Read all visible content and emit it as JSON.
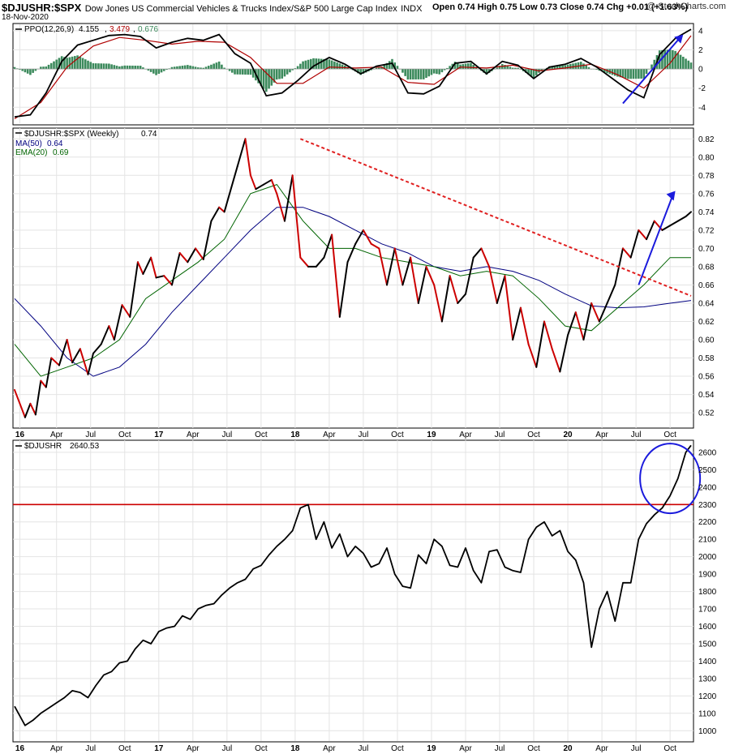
{
  "header": {
    "symbol": "$DJUSHR:$SPX",
    "description": "Dow Jones US Commercial Vehicles & Trucks Index/S&P 500 Large Cap Index",
    "exchange": "INDX",
    "date": "18-Nov-2020",
    "credit": "@ StockCharts.com",
    "open_label": "Open",
    "open": "0.74",
    "high_label": "High",
    "high": "0.75",
    "low_label": "Low",
    "low": "0.73",
    "close_label": "Close",
    "close": "0.74",
    "chg_label": "Chg",
    "chg": "+0.01 (+1.63%)"
  },
  "colors": {
    "price": "#000000",
    "price_down": "#cc0000",
    "ma50": "#000080",
    "ema20": "#006400",
    "ppo_line": "#000000",
    "ppo_signal": "#b00000",
    "histogram": "#3c8a5c",
    "trendline": "#e02020",
    "arrow": "#1a1adc",
    "resistance": "#cc0000",
    "circle": "#1a1adc"
  },
  "chart_data": [
    {
      "type": "line",
      "panel": "ppo",
      "legend": {
        "label": "PPO(12,26,9)",
        "ppo": "4.155",
        "signal": "3.479",
        "hist": "0.676"
      },
      "ylim": [
        -5.5,
        4.5
      ],
      "y_ticks": [
        "4",
        "2",
        "0",
        "-2",
        "-4"
      ],
      "series": [
        {
          "name": "PPO(12,26,9)",
          "t": [
            0,
            6,
            12,
            18,
            24,
            30,
            36,
            42,
            48,
            54,
            60,
            66,
            72,
            78,
            84,
            90,
            96,
            102,
            108,
            114,
            120,
            126,
            132,
            138,
            144,
            150,
            156,
            162,
            168,
            174,
            180,
            186,
            192,
            198,
            204,
            210,
            216,
            222,
            228,
            234,
            240,
            246,
            252,
            258
          ],
          "values": [
            -5,
            -4.8,
            -2.5,
            0.8,
            2.5,
            3,
            3.5,
            3.6,
            3.4,
            2.2,
            2.8,
            3.2,
            3.0,
            3.6,
            1.6,
            0.6,
            -2.8,
            -2.5,
            -1.2,
            0.3,
            1.2,
            0.5,
            -0.5,
            0.3,
            0.6,
            -2.5,
            -2.6,
            -1.8,
            0.6,
            0.8,
            -0.5,
            0.8,
            0.4,
            -1.0,
            0.2,
            0.5,
            1.1,
            0.2,
            -1.0,
            -2.2,
            -3.0,
            1.5,
            3.2,
            4.155
          ]
        },
        {
          "name": "Signal",
          "t": [
            0,
            10,
            20,
            30,
            40,
            50,
            60,
            70,
            80,
            90,
            100,
            110,
            120,
            130,
            140,
            150,
            160,
            170,
            180,
            190,
            200,
            210,
            220,
            230,
            240,
            250,
            258
          ],
          "values": [
            -5.2,
            -3.5,
            0.2,
            2.4,
            3.3,
            3.0,
            2.6,
            2.9,
            2.8,
            1.2,
            -1.5,
            -1.5,
            0.2,
            0.1,
            0.2,
            -1.4,
            -1.6,
            0.2,
            0.1,
            0.4,
            -0.2,
            0.1,
            0.5,
            -0.6,
            -2.0,
            0.6,
            3.479
          ]
        }
      ]
    },
    {
      "type": "line",
      "panel": "ratio",
      "legend": {
        "label": "$DJUSHR:$SPX (Weekly)",
        "value": "0.74",
        "ma_label": "MA(50)",
        "ma_value": "0.64",
        "ema_label": "EMA(20)",
        "ema_value": "0.69"
      },
      "ylim": [
        0.505,
        0.83
      ],
      "y_ticks": [
        "0.82",
        "0.80",
        "0.78",
        "0.76",
        "0.74",
        "0.72",
        "0.70",
        "0.68",
        "0.66",
        "0.64",
        "0.62",
        "0.60",
        "0.58",
        "0.56",
        "0.54",
        "0.52"
      ],
      "series": [
        {
          "name": "$DJUSHR:$SPX",
          "t": [
            0,
            4,
            6,
            8,
            10,
            12,
            14,
            17,
            20,
            22,
            25,
            28,
            30,
            33,
            36,
            38,
            41,
            44,
            47,
            49,
            52,
            54,
            57,
            60,
            63,
            66,
            69,
            72,
            75,
            78,
            80,
            82,
            85,
            88,
            90,
            92,
            95,
            98,
            100,
            103,
            106,
            109,
            112,
            115,
            118,
            121,
            124,
            127,
            130,
            133,
            136,
            139,
            142,
            145,
            148,
            151,
            154,
            157,
            160,
            163,
            166,
            169,
            172,
            175,
            178,
            181,
            184,
            187,
            190,
            193,
            196,
            199,
            202,
            205,
            208,
            211,
            214,
            217,
            220,
            223,
            226,
            229,
            232,
            235,
            238,
            241,
            244,
            247,
            250,
            253,
            256,
            258
          ],
          "values": [
            0.545,
            0.515,
            0.53,
            0.518,
            0.555,
            0.548,
            0.58,
            0.572,
            0.6,
            0.575,
            0.59,
            0.562,
            0.585,
            0.595,
            0.615,
            0.6,
            0.638,
            0.625,
            0.685,
            0.672,
            0.69,
            0.668,
            0.67,
            0.66,
            0.695,
            0.685,
            0.7,
            0.688,
            0.73,
            0.745,
            0.74,
            0.76,
            0.79,
            0.82,
            0.78,
            0.765,
            0.77,
            0.775,
            0.76,
            0.73,
            0.78,
            0.69,
            0.68,
            0.68,
            0.69,
            0.715,
            0.625,
            0.685,
            0.705,
            0.72,
            0.705,
            0.7,
            0.66,
            0.7,
            0.66,
            0.69,
            0.64,
            0.68,
            0.66,
            0.62,
            0.67,
            0.64,
            0.65,
            0.69,
            0.7,
            0.68,
            0.64,
            0.67,
            0.6,
            0.635,
            0.595,
            0.57,
            0.62,
            0.59,
            0.565,
            0.605,
            0.63,
            0.6,
            0.64,
            0.62,
            0.64,
            0.66,
            0.7,
            0.69,
            0.72,
            0.71,
            0.73,
            0.72,
            0.725,
            0.73,
            0.735,
            0.74
          ]
        },
        {
          "name": "MA(50)",
          "t": [
            0,
            10,
            20,
            30,
            40,
            50,
            60,
            70,
            80,
            90,
            100,
            110,
            120,
            130,
            140,
            150,
            160,
            170,
            180,
            190,
            200,
            210,
            220,
            230,
            240,
            250,
            258
          ],
          "values": [
            0.645,
            0.615,
            0.58,
            0.56,
            0.57,
            0.595,
            0.63,
            0.66,
            0.69,
            0.72,
            0.745,
            0.745,
            0.735,
            0.72,
            0.705,
            0.695,
            0.68,
            0.675,
            0.68,
            0.675,
            0.665,
            0.65,
            0.637,
            0.635,
            0.636,
            0.64,
            0.643
          ]
        },
        {
          "name": "EMA(20)",
          "t": [
            0,
            10,
            20,
            30,
            40,
            50,
            60,
            70,
            80,
            90,
            100,
            110,
            120,
            130,
            140,
            150,
            160,
            170,
            180,
            190,
            200,
            210,
            220,
            230,
            240,
            250,
            258
          ],
          "values": [
            0.595,
            0.56,
            0.57,
            0.58,
            0.6,
            0.645,
            0.665,
            0.685,
            0.71,
            0.76,
            0.77,
            0.73,
            0.7,
            0.7,
            0.69,
            0.685,
            0.68,
            0.67,
            0.675,
            0.67,
            0.645,
            0.615,
            0.61,
            0.635,
            0.66,
            0.69,
            0.69
          ]
        }
      ],
      "annotations": {
        "trendline_from": [
          109,
          0.82
        ],
        "trendline_to": [
          258,
          0.648
        ]
      }
    },
    {
      "type": "line",
      "panel": "price",
      "legend": {
        "label": "$DJUSHR",
        "value": "2640.53"
      },
      "ylim": [
        950,
        2660
      ],
      "y_ticks": [
        "2600",
        "2500",
        "2400",
        "2300",
        "2200",
        "2100",
        "2000",
        "1900",
        "1800",
        "1700",
        "1600",
        "1500",
        "1400",
        "1300",
        "1200",
        "1100",
        "1000"
      ],
      "series": [
        {
          "name": "$DJUSHR",
          "t": [
            0,
            4,
            7,
            10,
            13,
            16,
            19,
            22,
            25,
            28,
            31,
            34,
            37,
            40,
            43,
            46,
            49,
            52,
            55,
            58,
            61,
            64,
            67,
            70,
            73,
            76,
            79,
            82,
            85,
            88,
            91,
            94,
            97,
            100,
            103,
            106,
            109,
            112,
            115,
            118,
            121,
            124,
            127,
            130,
            133,
            136,
            139,
            142,
            145,
            148,
            151,
            154,
            157,
            160,
            163,
            166,
            169,
            172,
            175,
            178,
            181,
            184,
            187,
            190,
            193,
            196,
            199,
            202,
            205,
            208,
            211,
            214,
            217,
            220,
            223,
            226,
            229,
            232,
            235,
            238,
            241,
            244,
            247,
            250,
            253,
            256,
            258
          ],
          "values": [
            1140,
            1030,
            1060,
            1100,
            1130,
            1160,
            1190,
            1230,
            1220,
            1190,
            1260,
            1320,
            1340,
            1390,
            1400,
            1470,
            1520,
            1500,
            1570,
            1590,
            1600,
            1660,
            1640,
            1700,
            1720,
            1730,
            1780,
            1820,
            1850,
            1870,
            1930,
            1950,
            2010,
            2060,
            2100,
            2150,
            2280,
            2300,
            2100,
            2200,
            2050,
            2130,
            2000,
            2060,
            2020,
            1940,
            1960,
            2050,
            1900,
            1830,
            1820,
            2010,
            1960,
            2100,
            2060,
            1950,
            1940,
            2050,
            1920,
            1850,
            2030,
            2040,
            1940,
            1920,
            1910,
            2100,
            2170,
            2200,
            2120,
            2150,
            2030,
            1980,
            1850,
            1480,
            1700,
            1800,
            1630,
            1850,
            1850,
            2100,
            2190,
            2240,
            2280,
            2350,
            2450,
            2600,
            2640
          ]
        }
      ],
      "annotations": {
        "resistance_level": 2300
      }
    }
  ],
  "axis": {
    "labels": [
      {
        "t": 2,
        "text": "16",
        "year": true
      },
      {
        "t": 16,
        "text": "Apr",
        "year": false
      },
      {
        "t": 29,
        "text": "Jul",
        "year": false
      },
      {
        "t": 42,
        "text": "Oct",
        "year": false
      },
      {
        "t": 55,
        "text": "17",
        "year": true
      },
      {
        "t": 68,
        "text": "Apr",
        "year": false
      },
      {
        "t": 81,
        "text": "Jul",
        "year": false
      },
      {
        "t": 94,
        "text": "Oct",
        "year": false
      },
      {
        "t": 107,
        "text": "18",
        "year": true
      },
      {
        "t": 120,
        "text": "Apr",
        "year": false
      },
      {
        "t": 133,
        "text": "Jul",
        "year": false
      },
      {
        "t": 146,
        "text": "Oct",
        "year": false
      },
      {
        "t": 159,
        "text": "19",
        "year": true
      },
      {
        "t": 172,
        "text": "Apr",
        "year": false
      },
      {
        "t": 185,
        "text": "Jul",
        "year": false
      },
      {
        "t": 198,
        "text": "Oct",
        "year": false
      },
      {
        "t": 211,
        "text": "20",
        "year": true
      },
      {
        "t": 224,
        "text": "Apr",
        "year": false
      },
      {
        "t": 237,
        "text": "Jul",
        "year": false
      },
      {
        "t": 250,
        "text": "Oct",
        "year": false
      }
    ]
  }
}
